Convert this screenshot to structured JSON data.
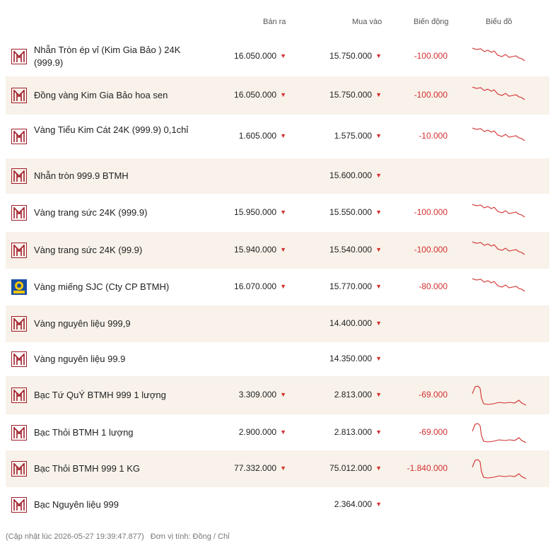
{
  "header": {
    "ban_ra": "Bán ra",
    "mua_vao": "Mua vào",
    "bien_dong": "Biến động",
    "bieu_do": "Biểu đồ"
  },
  "colors": {
    "accent": "#d32f2f",
    "row_shade": "#f8f2ea",
    "logo_brand": "#a01e2a",
    "sjc_blue": "#1b4ea3",
    "sjc_gold": "#f2c600"
  },
  "rows": [
    {
      "name": "Nhẫn Tròn ép vỉ (Kim Gia Bảo ) 24K (999.9)",
      "logo": "btmh-logo-icon",
      "sell": "16.050.000",
      "buy": "15.750.000",
      "change": "-100.000",
      "trend": "gold"
    },
    {
      "name": "Đồng vàng Kim Gia Bảo hoa sen",
      "logo": "btmh-logo-icon",
      "sell": "16.050.000",
      "buy": "15.750.000",
      "change": "-100.000",
      "trend": "gold"
    },
    {
      "name": "Vàng Tiểu Kim Cát 24K (999.9) 0,1chỉ",
      "logo": "btmh-logo-icon",
      "sell": "1.605.000",
      "buy": "1.575.000",
      "change": "-10.000",
      "trend": "gold"
    },
    {
      "name": "Nhẫn tròn 999.9 BTMH",
      "logo": "btmh-logo-icon",
      "sell": "",
      "buy": "15.600.000",
      "change": "",
      "trend": ""
    },
    {
      "name": "Vàng trang sức 24K (999.9)",
      "logo": "btmh-logo-icon",
      "sell": "15.950.000",
      "buy": "15.550.000",
      "change": "-100.000",
      "trend": "gold"
    },
    {
      "name": "Vàng trang sức 24K (99.9)",
      "logo": "btmh-logo-icon",
      "sell": "15.940.000",
      "buy": "15.540.000",
      "change": "-100.000",
      "trend": "gold"
    },
    {
      "name": "Vàng miếng SJC (Cty CP BTMH)",
      "logo": "sjc-logo-icon",
      "sell": "16.070.000",
      "buy": "15.770.000",
      "change": "-80.000",
      "trend": "gold"
    },
    {
      "name": "Vàng nguyên liệu 999,9",
      "logo": "btmh-logo-icon",
      "sell": "",
      "buy": "14.400.000",
      "change": "",
      "trend": ""
    },
    {
      "name": "Vàng nguyên liệu 99.9",
      "logo": "btmh-logo-icon",
      "sell": "",
      "buy": "14.350.000",
      "change": "",
      "trend": ""
    },
    {
      "name": "Bạc Tứ QuÝ BTMH 999 1 lượng",
      "logo": "btmh-logo-icon",
      "sell": "3.309.000",
      "buy": "2.813.000",
      "change": "-69.000",
      "trend": "silver"
    },
    {
      "name": "Bạc Thỏi BTMH 1 lượng",
      "logo": "btmh-logo-icon",
      "sell": "2.900.000",
      "buy": "2.813.000",
      "change": "-69.000",
      "trend": "silver"
    },
    {
      "name": "Bạc Thỏi BTMH 999 1 KG",
      "logo": "btmh-logo-icon",
      "sell": "77.332.000",
      "buy": "75.012.000",
      "change": "-1.840.000",
      "trend": "silver"
    },
    {
      "name": "Bạc Nguyên liệu 999",
      "logo": "btmh-logo-icon",
      "sell": "",
      "buy": "2.364.000",
      "change": "",
      "trend": ""
    }
  ],
  "footer": {
    "updated": "(Cập nhật lúc 2026-05-27 19:39:47.877)",
    "unit": "Đơn vị tính: Đồng / Chỉ"
  }
}
